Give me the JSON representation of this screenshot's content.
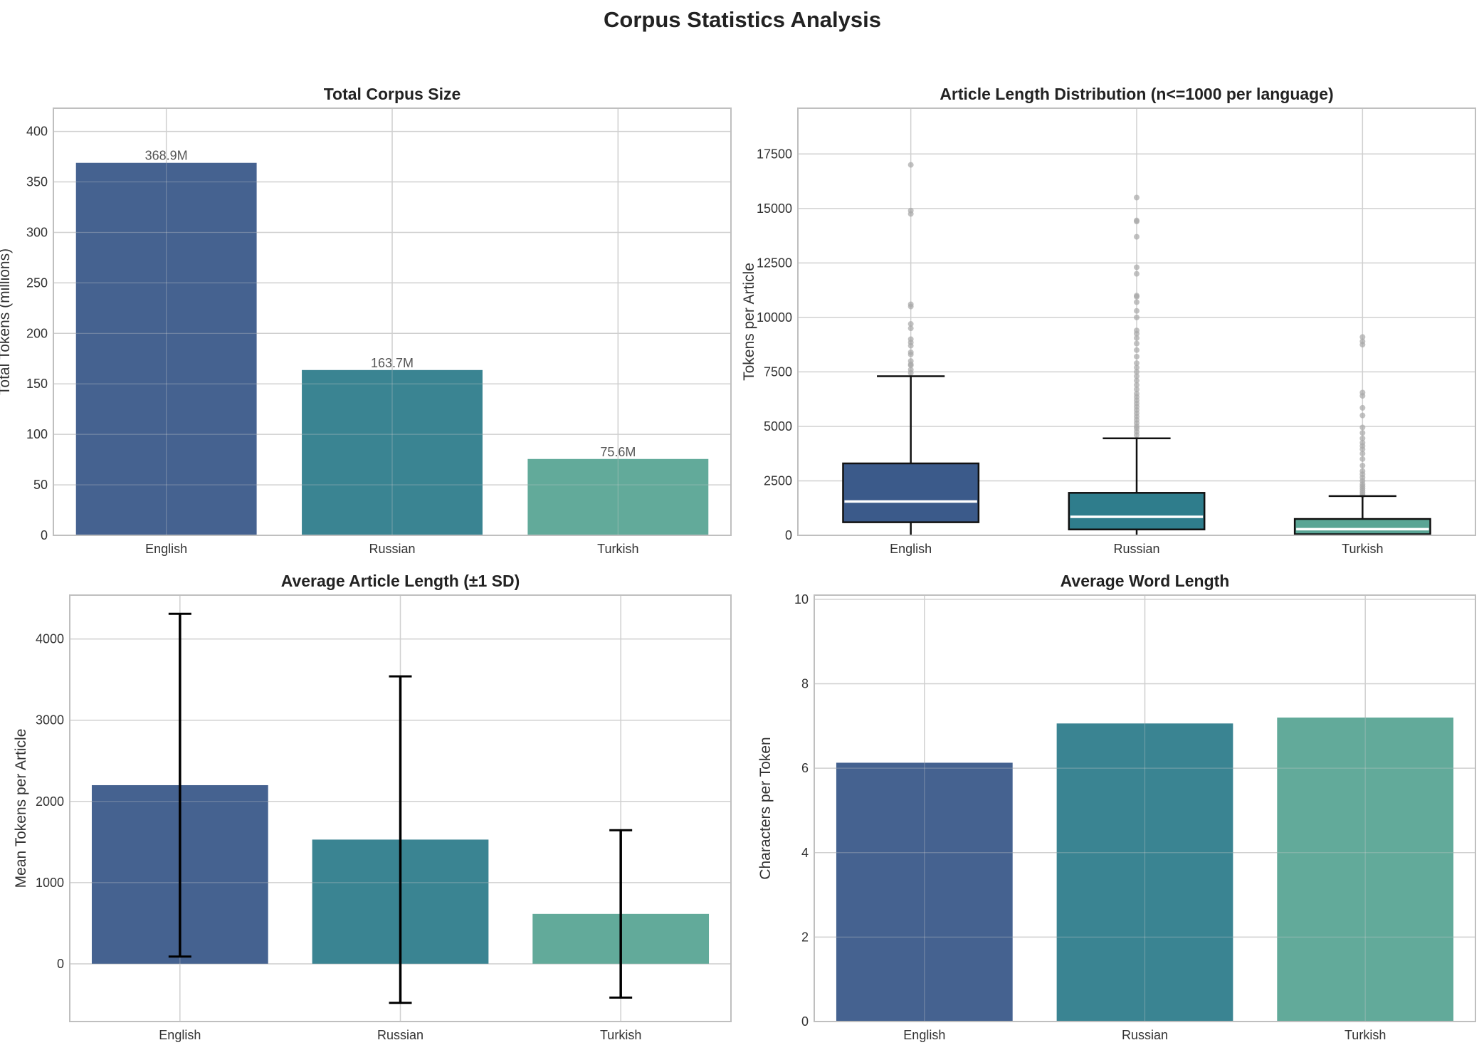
{
  "figure": {
    "title": "Corpus Statistics Analysis"
  },
  "colors": {
    "english": "#3b5a8a",
    "russian": "#2f7d8c",
    "turkish": "#5aa595",
    "grid": "#d0d0d0",
    "frame": "#bfbfbf",
    "outlier": "#a8a8a8",
    "median": "#ffffff",
    "errorbar": "#000000"
  },
  "chart_data": [
    {
      "id": "corpus_size",
      "type": "bar",
      "title": "Total Corpus Size",
      "xlabel": "",
      "ylabel": "Total Tokens (millions)",
      "categories": [
        "English",
        "Russian",
        "Turkish"
      ],
      "values": [
        368.9,
        163.7,
        75.6
      ],
      "data_labels": [
        "368.9M",
        "163.7M",
        "75.6M"
      ],
      "ylim": [
        0,
        423
      ],
      "yticks": [
        0,
        50,
        100,
        150,
        200,
        250,
        300,
        350,
        400
      ],
      "grid": true
    },
    {
      "id": "length_distribution",
      "type": "box",
      "title": "Article Length Distribution (n<=1000 per language)",
      "xlabel": "",
      "ylabel": "Tokens per Article",
      "categories": [
        "English",
        "Russian",
        "Turkish"
      ],
      "boxes": [
        {
          "whisker_low": 0,
          "q1": 600,
          "median": 1550,
          "q3": 3300,
          "whisker_high": 7300,
          "outliers": [
            7450,
            7600,
            7800,
            7850,
            8000,
            8300,
            8400,
            8700,
            8850,
            9000,
            9500,
            9700,
            10500,
            10600,
            14750,
            14900,
            17000
          ]
        },
        {
          "whisker_low": 0,
          "q1": 270,
          "median": 850,
          "q3": 1950,
          "whisker_high": 4450,
          "outliers": [
            4600,
            4750,
            4900,
            5000,
            5150,
            5300,
            5450,
            5600,
            5750,
            5900,
            6050,
            6200,
            6350,
            6500,
            6700,
            6900,
            7100,
            7300,
            7500,
            7700,
            7900,
            8200,
            8500,
            8800,
            9050,
            9250,
            9400,
            10000,
            10300,
            10700,
            10950,
            11000,
            12000,
            12300,
            13700,
            14400,
            14450,
            15500
          ]
        },
        {
          "whisker_low": 0,
          "q1": 50,
          "median": 280,
          "q3": 750,
          "whisker_high": 1800,
          "outliers": [
            1850,
            1950,
            2050,
            2150,
            2250,
            2350,
            2500,
            2650,
            2800,
            2950,
            3200,
            3500,
            3750,
            3950,
            4100,
            4250,
            4450,
            4700,
            4950,
            5500,
            5850,
            6400,
            6550,
            8750,
            8900,
            9100
          ]
        }
      ],
      "ylim": [
        0,
        19600
      ],
      "yticks": [
        0,
        2500,
        5000,
        7500,
        10000,
        12500,
        15000,
        17500
      ],
      "grid": true
    },
    {
      "id": "avg_article_length",
      "type": "bar",
      "title": "Average Article Length (±1 SD)",
      "xlabel": "",
      "ylabel": "Mean Tokens per Article",
      "categories": [
        "English",
        "Russian",
        "Turkish"
      ],
      "values": [
        2200,
        1530,
        615
      ],
      "errors": [
        2110,
        2010,
        1030
      ],
      "ylim": [
        -710,
        4540
      ],
      "yticks": [
        0,
        1000,
        2000,
        3000,
        4000
      ],
      "grid": true
    },
    {
      "id": "avg_word_length",
      "type": "bar",
      "title": "Average Word Length",
      "xlabel": "",
      "ylabel": "Characters per Token",
      "categories": [
        "English",
        "Russian",
        "Turkish"
      ],
      "values": [
        6.13,
        7.06,
        7.2
      ],
      "ylim": [
        0,
        10.1
      ],
      "yticks": [
        0,
        2,
        4,
        6,
        8,
        10
      ],
      "grid": true
    }
  ]
}
